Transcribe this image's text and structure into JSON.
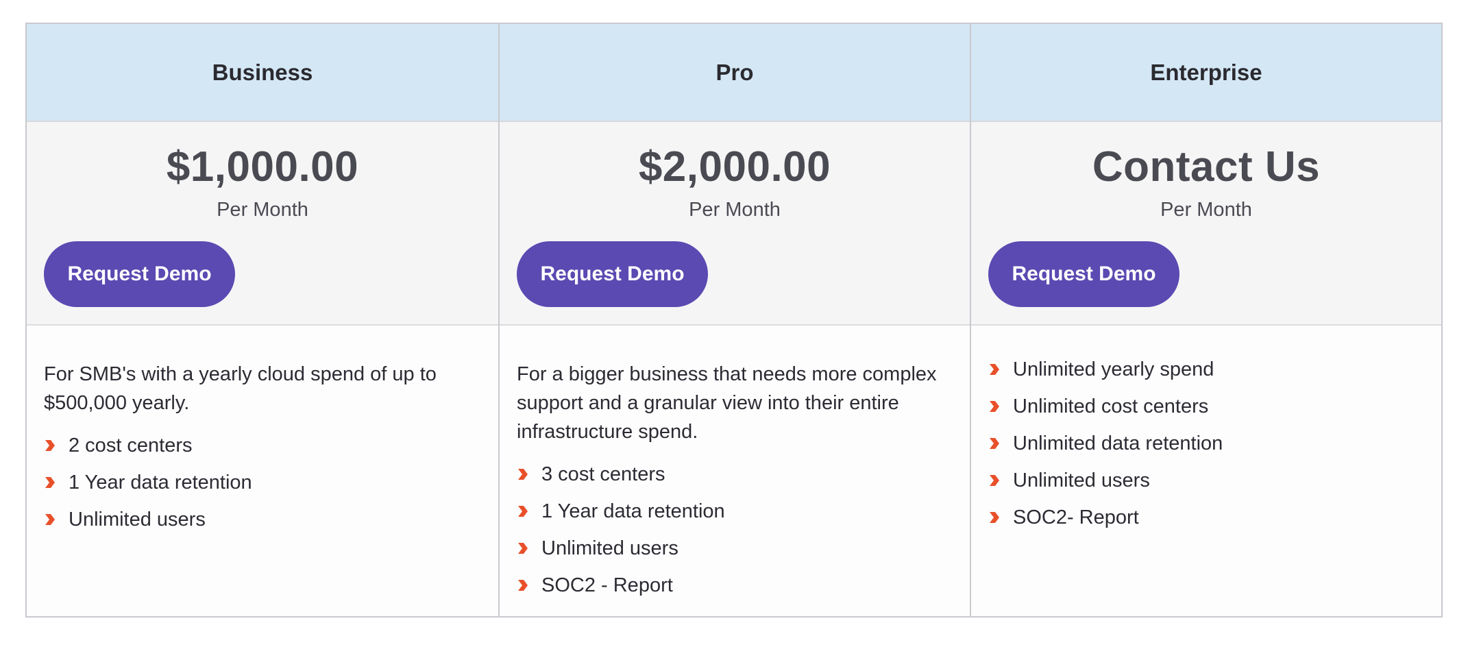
{
  "plans": [
    {
      "name": "Business",
      "price": "$1,000.00",
      "period": "Per Month",
      "cta": "Request Demo",
      "description": "For SMB's with a yearly cloud spend of up to $500,000 yearly.",
      "features": [
        "2 cost centers",
        "1 Year data retention",
        "Unlimited users"
      ]
    },
    {
      "name": "Pro",
      "price": "$2,000.00",
      "period": "Per Month",
      "cta": "Request Demo",
      "description": "For a bigger business that needs more complex support and a granular view into their entire infrastructure spend.",
      "features": [
        "3 cost centers",
        "1 Year data retention",
        "Unlimited users",
        "SOC2 - Report"
      ]
    },
    {
      "name": "Enterprise",
      "price": "Contact Us",
      "period": "Per Month",
      "cta": "Request Demo",
      "description": "",
      "features": [
        "Unlimited yearly spend",
        "Unlimited cost centers",
        "Unlimited data retention",
        "Unlimited users",
        "SOC2- Report"
      ]
    }
  ],
  "colors": {
    "header_bg": "#d4e7f4",
    "button_bg": "#5a4ab2",
    "bullet": "#e8502a"
  },
  "icons": {
    "bullet": "chevron-right-icon"
  }
}
